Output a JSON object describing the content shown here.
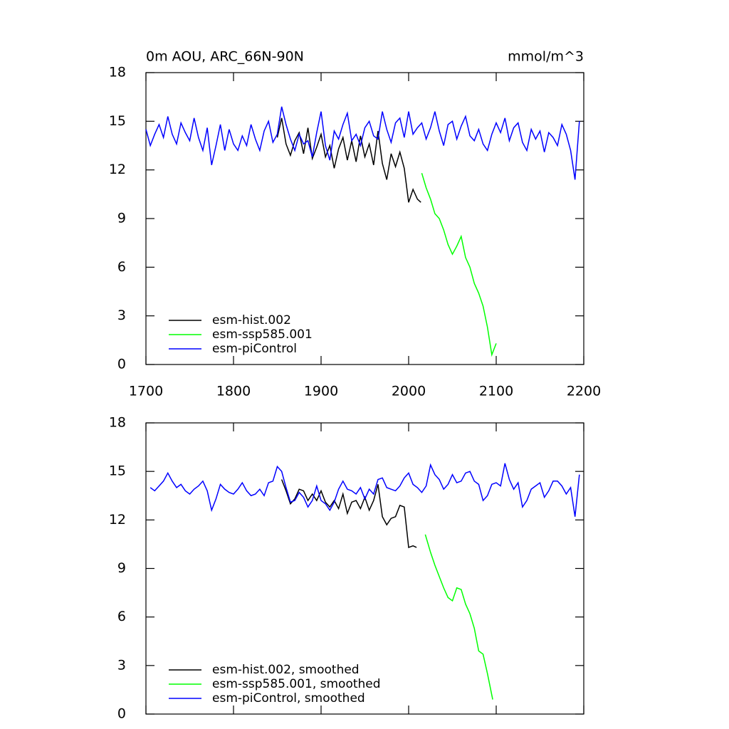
{
  "chart_data": [
    {
      "type": "line",
      "title": "0m AOU, ARC_66N-90N",
      "units": "mmol/m^3",
      "xlim": [
        1700,
        2200
      ],
      "xticks": [
        1700,
        1800,
        1900,
        2000,
        2100,
        2200
      ],
      "ylim": [
        0,
        18
      ],
      "yticks": [
        0,
        3,
        6,
        9,
        12,
        15,
        18
      ],
      "legend": "lower left",
      "series": [
        {
          "name": "esm-hist.002",
          "color": "#000000",
          "x": [
            1850,
            1855,
            1860,
            1865,
            1870,
            1875,
            1880,
            1885,
            1890,
            1895,
            1900,
            1905,
            1910,
            1915,
            1920,
            1925,
            1930,
            1935,
            1940,
            1945,
            1950,
            1955,
            1960,
            1965,
            1970,
            1975,
            1980,
            1985,
            1990,
            1995,
            2000,
            2005,
            2010,
            2014
          ],
          "values": [
            14.0,
            15.2,
            13.6,
            12.9,
            13.8,
            14.3,
            13.0,
            14.6,
            12.7,
            13.4,
            14.2,
            12.8,
            13.5,
            12.1,
            13.3,
            14.0,
            12.6,
            13.8,
            12.5,
            14.1,
            12.8,
            13.6,
            12.3,
            14.4,
            12.4,
            11.4,
            13.0,
            12.2,
            13.1,
            12.1,
            10.0,
            10.8,
            10.2,
            10.0
          ]
        },
        {
          "name": "esm-ssp585.001",
          "color": "#00ff00",
          "x": [
            2015,
            2020,
            2025,
            2030,
            2035,
            2040,
            2045,
            2050,
            2055,
            2060,
            2065,
            2070,
            2075,
            2080,
            2085,
            2090,
            2095,
            2100
          ],
          "values": [
            11.8,
            10.9,
            10.2,
            9.3,
            9.0,
            8.3,
            7.4,
            6.8,
            7.3,
            7.9,
            6.6,
            6.0,
            5.0,
            4.4,
            3.6,
            2.3,
            0.6,
            1.3
          ]
        },
        {
          "name": "esm-piControl",
          "color": "#0000ff",
          "x": [
            1700,
            1705,
            1710,
            1715,
            1720,
            1725,
            1730,
            1735,
            1740,
            1745,
            1750,
            1755,
            1760,
            1765,
            1770,
            1775,
            1780,
            1785,
            1790,
            1795,
            1800,
            1805,
            1810,
            1815,
            1820,
            1825,
            1830,
            1835,
            1840,
            1845,
            1850,
            1855,
            1860,
            1865,
            1870,
            1875,
            1880,
            1885,
            1890,
            1895,
            1900,
            1905,
            1910,
            1915,
            1920,
            1925,
            1930,
            1935,
            1940,
            1945,
            1950,
            1955,
            1960,
            1965,
            1970,
            1975,
            1980,
            1985,
            1990,
            1995,
            2000,
            2005,
            2010,
            2015,
            2020,
            2025,
            2030,
            2035,
            2040,
            2045,
            2050,
            2055,
            2060,
            2065,
            2070,
            2075,
            2080,
            2085,
            2090,
            2095,
            2100,
            2105,
            2110,
            2115,
            2120,
            2125,
            2130,
            2135,
            2140,
            2145,
            2150,
            2155,
            2160,
            2165,
            2170,
            2175,
            2180,
            2185,
            2190,
            2195
          ],
          "values": [
            14.5,
            13.5,
            14.2,
            14.8,
            14.0,
            15.3,
            14.2,
            13.6,
            14.9,
            14.3,
            13.8,
            15.2,
            14.0,
            13.2,
            14.6,
            12.3,
            13.5,
            14.8,
            13.2,
            14.5,
            13.6,
            13.2,
            14.1,
            13.5,
            14.8,
            13.9,
            13.2,
            14.4,
            15.0,
            13.7,
            14.2,
            15.9,
            14.8,
            13.9,
            13.2,
            14.2,
            13.6,
            13.8,
            12.8,
            14.3,
            15.6,
            13.5,
            12.6,
            14.4,
            13.9,
            14.8,
            15.5,
            13.8,
            14.2,
            13.5,
            14.6,
            15.0,
            14.1,
            13.9,
            15.6,
            14.5,
            13.7,
            14.9,
            15.2,
            14.0,
            15.6,
            14.2,
            14.6,
            14.9,
            13.9,
            14.6,
            15.6,
            14.4,
            13.5,
            14.8,
            15.0,
            13.9,
            14.7,
            15.3,
            14.1,
            13.8,
            14.5,
            13.6,
            13.2,
            14.2,
            14.9,
            14.3,
            15.2,
            13.8,
            14.6,
            14.9,
            13.7,
            13.2,
            14.5,
            13.9,
            14.4,
            13.1,
            14.3,
            14.0,
            13.5,
            14.8,
            14.2,
            13.2,
            11.4,
            15.0
          ]
        }
      ]
    },
    {
      "type": "line",
      "xlim": [
        1700,
        2200
      ],
      "ylim": [
        0,
        18
      ],
      "yticks": [
        0,
        3,
        6,
        9,
        12,
        15,
        18
      ],
      "legend": "lower left",
      "series": [
        {
          "name": "esm-hist.002, smoothed",
          "color": "#000000",
          "x": [
            1855,
            1860,
            1865,
            1870,
            1875,
            1880,
            1885,
            1890,
            1895,
            1900,
            1905,
            1910,
            1915,
            1920,
            1925,
            1930,
            1935,
            1940,
            1945,
            1950,
            1955,
            1960,
            1965,
            1970,
            1975,
            1980,
            1985,
            1990,
            1995,
            2000,
            2005,
            2009
          ],
          "values": [
            14.5,
            13.8,
            13.0,
            13.3,
            13.9,
            13.8,
            13.2,
            13.6,
            13.2,
            13.8,
            13.1,
            12.8,
            13.2,
            12.7,
            13.6,
            12.4,
            13.1,
            13.2,
            12.7,
            13.4,
            12.6,
            13.2,
            14.2,
            12.2,
            11.7,
            12.1,
            12.2,
            12.9,
            12.8,
            10.3,
            10.4,
            10.3
          ]
        },
        {
          "name": "esm-ssp585.001, smoothed",
          "color": "#00ff00",
          "x": [
            2019,
            2025,
            2030,
            2035,
            2040,
            2045,
            2050,
            2055,
            2060,
            2065,
            2070,
            2075,
            2080,
            2085,
            2090,
            2096
          ],
          "values": [
            11.1,
            10.0,
            9.2,
            8.5,
            7.8,
            7.2,
            7.0,
            7.8,
            7.7,
            6.8,
            6.2,
            5.3,
            3.9,
            3.7,
            2.5,
            0.9
          ]
        },
        {
          "name": "esm-piControl, smoothed",
          "color": "#0000ff",
          "x": [
            1705,
            1710,
            1715,
            1720,
            1725,
            1730,
            1735,
            1740,
            1745,
            1750,
            1755,
            1760,
            1765,
            1770,
            1775,
            1780,
            1785,
            1790,
            1795,
            1800,
            1805,
            1810,
            1815,
            1820,
            1825,
            1830,
            1835,
            1840,
            1845,
            1850,
            1855,
            1860,
            1865,
            1870,
            1875,
            1880,
            1885,
            1890,
            1895,
            1900,
            1905,
            1910,
            1915,
            1920,
            1925,
            1930,
            1935,
            1940,
            1945,
            1950,
            1955,
            1960,
            1965,
            1970,
            1975,
            1980,
            1985,
            1990,
            1995,
            2000,
            2005,
            2010,
            2015,
            2020,
            2025,
            2030,
            2035,
            2040,
            2045,
            2050,
            2055,
            2060,
            2065,
            2070,
            2075,
            2080,
            2085,
            2090,
            2095,
            2100,
            2105,
            2110,
            2115,
            2120,
            2125,
            2130,
            2135,
            2140,
            2145,
            2150,
            2155,
            2160,
            2165,
            2170,
            2175,
            2180,
            2185,
            2190,
            2195
          ],
          "values": [
            14.0,
            13.8,
            14.1,
            14.4,
            14.9,
            14.4,
            14.0,
            14.2,
            13.8,
            13.6,
            13.9,
            14.1,
            14.4,
            13.8,
            12.6,
            13.3,
            14.2,
            13.9,
            13.7,
            13.6,
            13.9,
            14.3,
            13.8,
            13.5,
            13.6,
            13.9,
            13.5,
            14.3,
            14.4,
            15.3,
            15.0,
            14.0,
            13.1,
            13.2,
            13.7,
            13.4,
            12.8,
            13.2,
            14.1,
            13.2,
            13.0,
            12.6,
            13.1,
            13.9,
            14.4,
            13.9,
            13.8,
            13.6,
            14.0,
            13.3,
            13.9,
            13.6,
            14.5,
            14.6,
            14.0,
            13.9,
            13.8,
            14.1,
            14.6,
            14.9,
            14.2,
            14.0,
            13.7,
            14.1,
            15.4,
            14.8,
            14.5,
            13.9,
            14.2,
            14.8,
            14.3,
            14.4,
            14.9,
            15.0,
            14.4,
            14.2,
            13.2,
            13.5,
            14.2,
            14.3,
            14.1,
            15.5,
            14.5,
            13.9,
            14.3,
            12.8,
            13.2,
            13.9,
            14.1,
            14.3,
            13.4,
            13.8,
            14.4,
            14.4,
            14.1,
            13.6,
            14.0,
            12.2,
            14.8
          ]
        }
      ]
    }
  ]
}
